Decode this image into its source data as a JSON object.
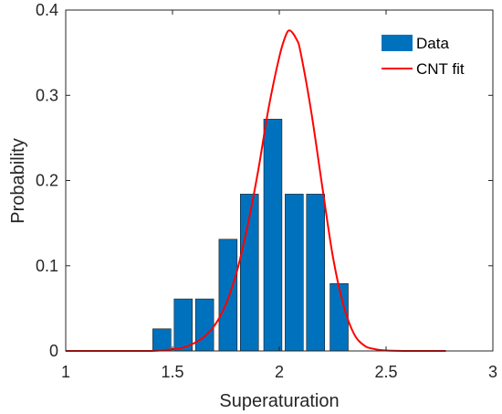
{
  "chart_data": {
    "type": "bar",
    "x": [
      1.45,
      1.55,
      1.65,
      1.76,
      1.86,
      1.97,
      2.07,
      2.17,
      2.28
    ],
    "values": [
      0.026,
      0.061,
      0.061,
      0.131,
      0.184,
      0.272,
      0.184,
      0.184,
      0.079
    ],
    "bar_width": 0.085,
    "series": [
      {
        "name": "Data",
        "type": "bar",
        "color": "#0072BD"
      },
      {
        "name": "CNT fit",
        "type": "line",
        "color": "#FF0000",
        "x": [
          1.0,
          1.3,
          1.4,
          1.5,
          1.55,
          1.6,
          1.65,
          1.7,
          1.75,
          1.8,
          1.85,
          1.9,
          1.95,
          2.0,
          2.03,
          2.05,
          2.08,
          2.1,
          2.15,
          2.2,
          2.25,
          2.3,
          2.35,
          2.4,
          2.45,
          2.5,
          2.6,
          2.78
        ],
        "y": [
          0.0,
          0.0,
          0.0,
          0.002,
          0.004,
          0.009,
          0.017,
          0.031,
          0.055,
          0.092,
          0.145,
          0.21,
          0.285,
          0.345,
          0.37,
          0.376,
          0.366,
          0.35,
          0.28,
          0.195,
          0.112,
          0.054,
          0.02,
          0.006,
          0.002,
          0.0005,
          0.0,
          0.0
        ]
      }
    ],
    "xlabel": "Superaturation",
    "ylabel": "Probability",
    "xlim": [
      1,
      3
    ],
    "ylim": [
      0,
      0.4
    ],
    "xticks": [
      "1",
      "1.5",
      "2",
      "2.5",
      "3"
    ],
    "yticks": [
      "0",
      "0.1",
      "0.2",
      "0.3",
      "0.4"
    ],
    "grid": false,
    "legend_position": "top-right"
  }
}
